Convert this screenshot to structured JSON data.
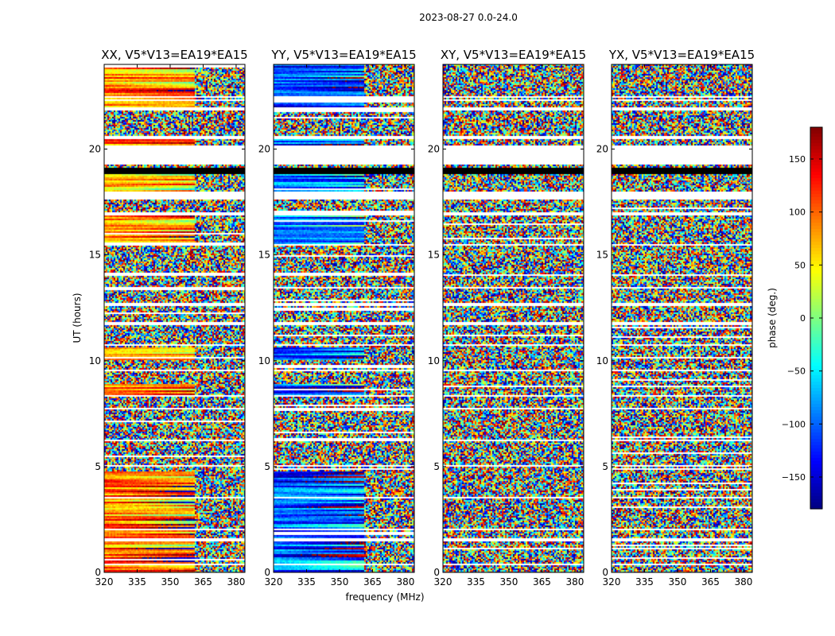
{
  "chart_data": {
    "type": "heatmap",
    "suptitle": "2023-08-27 0.0-24.0",
    "xlabel": "frequency (MHz)",
    "ylabel": "UT (hours)",
    "colorbar_label": "phase (deg.)",
    "colormap": "jet",
    "colorbar_range": [
      -180,
      180
    ],
    "colorbar_ticks": [
      -150,
      -100,
      -50,
      0,
      50,
      100,
      150
    ],
    "colorbar_tick_labels": [
      "−150",
      "−100",
      "−50",
      "0",
      "50",
      "100",
      "150"
    ],
    "xlim": [
      320,
      384
    ],
    "xticks": [
      320,
      335,
      350,
      365,
      380
    ],
    "ylim": [
      0,
      24
    ],
    "yticks": [
      0,
      5,
      10,
      15,
      20
    ],
    "panels": [
      {
        "title": "XX, V5*V13=EA19*EA15",
        "polarization": "XX",
        "show_ylabel": true
      },
      {
        "title": "YY, V5*V13=EA19*EA15",
        "polarization": "YY",
        "show_ylabel": false
      },
      {
        "title": "XY, V5*V13=EA19*EA15",
        "polarization": "XY",
        "show_ylabel": false
      },
      {
        "title": "YX, V5*V13=EA19*EA15",
        "polarization": "YX",
        "show_ylabel": false
      }
    ],
    "flagged_white_ut_ranges": [
      [
        19.3,
        20.2
      ],
      [
        17.6,
        18.0
      ],
      [
        21.8,
        22.0
      ],
      [
        10.7,
        10.8
      ],
      [
        8.3,
        8.4
      ],
      [
        5.0,
        5.1
      ],
      [
        3.5,
        3.6
      ],
      [
        1.5,
        1.6
      ],
      [
        0.35,
        0.4
      ],
      [
        14.0,
        14.1
      ],
      [
        16.9,
        17.0
      ],
      [
        20.5,
        20.6
      ],
      [
        6.2,
        6.3
      ],
      [
        12.6,
        12.7
      ],
      [
        2.0,
        2.1
      ],
      [
        9.5,
        9.6
      ],
      [
        11.7,
        11.8
      ],
      [
        13.4,
        13.5
      ],
      [
        15.4,
        15.5
      ],
      [
        7.7,
        7.8
      ],
      [
        22.4,
        22.5
      ]
    ],
    "flagged_black_ut_ranges": [
      [
        18.85,
        19.15
      ]
    ],
    "coherent_phase_ut_ranges": {
      "XX": [
        [
          22.0,
          24.0
        ],
        [
          20.2,
          20.5
        ],
        [
          18.0,
          18.8
        ],
        [
          15.5,
          16.9
        ],
        [
          10.0,
          10.6
        ],
        [
          8.4,
          8.9
        ],
        [
          0.0,
          4.8
        ]
      ],
      "YY": [
        [
          22.0,
          24.0
        ],
        [
          20.2,
          20.5
        ],
        [
          18.0,
          18.8
        ],
        [
          15.5,
          16.9
        ],
        [
          10.0,
          10.6
        ],
        [
          8.4,
          8.9
        ],
        [
          0.0,
          4.8
        ]
      ],
      "XY": [],
      "YX": []
    }
  }
}
